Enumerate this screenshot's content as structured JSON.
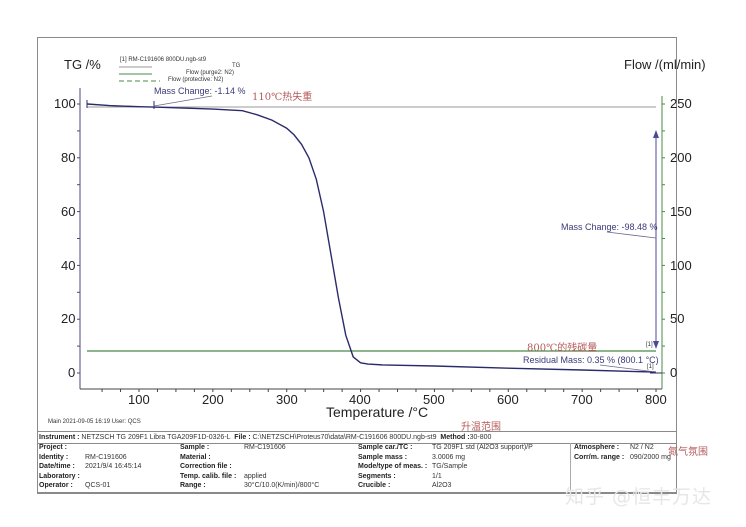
{
  "chart_data": {
    "type": "line",
    "title": "",
    "xlabel": "Temperature /°C",
    "ylabel": "TG /%",
    "y2label": "Flow /(ml/min)",
    "xlim": [
      22,
      810
    ],
    "ylim": [
      -5,
      105
    ],
    "y2lim": [
      -12.5,
      262.5
    ],
    "x_ticks": [
      100,
      200,
      300,
      400,
      500,
      600,
      700,
      800
    ],
    "y_ticks": [
      0,
      20,
      40,
      60,
      80,
      100
    ],
    "y2_ticks": [
      0,
      50,
      100,
      150,
      200,
      250
    ],
    "grid": false,
    "legend": {
      "title": "[1]  RM-C191606 800DU.ngb-st9",
      "entries": [
        "TG",
        "Flow (purge2: N2)",
        "Flow (protective: N2)"
      ],
      "position": "top-left"
    },
    "series": [
      {
        "name": "TG",
        "axis": "left",
        "color": "#2b2b6b",
        "x": [
          30,
          60,
          100,
          120,
          150,
          200,
          240,
          260,
          280,
          300,
          310,
          320,
          330,
          340,
          350,
          360,
          370,
          380,
          390,
          400,
          410,
          430,
          500,
          600,
          700,
          800
        ],
        "y": [
          100,
          99.4,
          99.0,
          98.86,
          98.6,
          98.1,
          97.5,
          96.0,
          94.0,
          91.0,
          88.5,
          85.0,
          80.0,
          72.0,
          60.0,
          44.0,
          28.0,
          14.0,
          6.0,
          3.8,
          3.3,
          3.0,
          2.6,
          1.8,
          1.1,
          0.35
        ]
      },
      {
        "name": "Flow (purge2: N2)",
        "axis": "right",
        "color": "#4a8a4a",
        "x": [
          30,
          800
        ],
        "y": [
          20,
          20
        ]
      },
      {
        "name": "Flow (protective: N2)",
        "axis": "right",
        "color": "#9a9a9a",
        "x": [
          30,
          800
        ],
        "y": [
          247,
          247
        ]
      }
    ],
    "annotations": [
      {
        "text": "Mass Change: -1.14 %",
        "x": 120,
        "y": 98.86
      },
      {
        "text": "Mass Change: -98.48 %",
        "x": 800,
        "y": 50
      },
      {
        "text": "Residual Mass: 0.35 % (800.1 °C)",
        "x": 800.1,
        "y": 0.35
      },
      {
        "text": "110℃热失重"
      },
      {
        "text": "800℃的残碳量"
      },
      {
        "text": "升温范围"
      },
      {
        "text": "氮气氛围"
      }
    ]
  },
  "axes": {
    "y_title": "TG /%",
    "y2_title": "Flow /(ml/min)",
    "x_title": "Temperature /°C",
    "y_ticks": [
      "100",
      "80",
      "60",
      "40",
      "20",
      "0"
    ],
    "y2_ticks": [
      "250",
      "200",
      "150",
      "100",
      "50",
      "0"
    ],
    "x_ticks": [
      "100",
      "200",
      "300",
      "400",
      "500",
      "600",
      "700",
      "800"
    ]
  },
  "legend": {
    "title": "[1]  RM-C191606 800DU.ngb-st9",
    "tg": "TG",
    "purge": "Flow (purge2: N2)",
    "protective": "Flow (protective: N2)"
  },
  "annotations": {
    "mass_change_1": "Mass Change: -1.14 %",
    "mass_change_2": "Mass Change: -98.48 %",
    "residual": "Residual Mass: 0.35 % (800.1 °C)",
    "marker_1a": "[1]",
    "marker_1b": "[1]",
    "cn_110": "110℃热失重",
    "cn_800": "800℃的残碳量",
    "cn_range": "升温范围",
    "cn_atmos": "氮气氛围"
  },
  "footer": {
    "main": "Main   2021-09-05 16:19   User: QCS"
  },
  "info": {
    "instrument_label": "Instrument :",
    "instrument_value": "NETZSCH TG 209F1 Libra TGA209F1D-0326-L",
    "file_label": "File :",
    "file_value": "C:\\NETZSCH\\Proteus70\\data\\RM-C191606 800DU.ngb-st9",
    "method_label": "Method :",
    "method_value": "30-800",
    "col1": [
      {
        "label": "Project :",
        "value": ""
      },
      {
        "label": "Identity :",
        "value": "RM-C191606"
      },
      {
        "label": "Date/time :",
        "value": "2021/9/4 16:45:14"
      },
      {
        "label": "Laboratory :",
        "value": ""
      },
      {
        "label": "Operator :",
        "value": "QCS-01"
      }
    ],
    "col2": [
      {
        "label": "Sample :",
        "value": "RM-C191606"
      },
      {
        "label": "Material :",
        "value": ""
      },
      {
        "label": "Correction file :",
        "value": ""
      },
      {
        "label": "Temp. calib. file :",
        "value": "applied"
      },
      {
        "label": "Range :",
        "value": "30°C/10.0(K/min)/800°C"
      }
    ],
    "col3": [
      {
        "label": "Sample car./TC :",
        "value": "TG 209F1 std (Al2O3 support)/P"
      },
      {
        "label": "Sample mass :",
        "value": "3.0006 mg"
      },
      {
        "label": "Mode/type of meas. :",
        "value": "TG/Sample"
      },
      {
        "label": "Segments :",
        "value": "1/1"
      },
      {
        "label": "Crucible :",
        "value": "Al2O3"
      }
    ],
    "col4": [
      {
        "label": "Atmosphere :",
        "value": "N2 / N2"
      },
      {
        "label": "Corr/m. range :",
        "value": "090/2000 mg"
      }
    ]
  },
  "watermark": "知乎 @恒丰万达",
  "colors": {
    "tg_curve": "#2b2b6b",
    "purge_flow": "#4a8a4a",
    "protective_flow": "#9a9a9a",
    "annotation": "#3a3a7a",
    "cn_annotation": "#b55a5a"
  }
}
